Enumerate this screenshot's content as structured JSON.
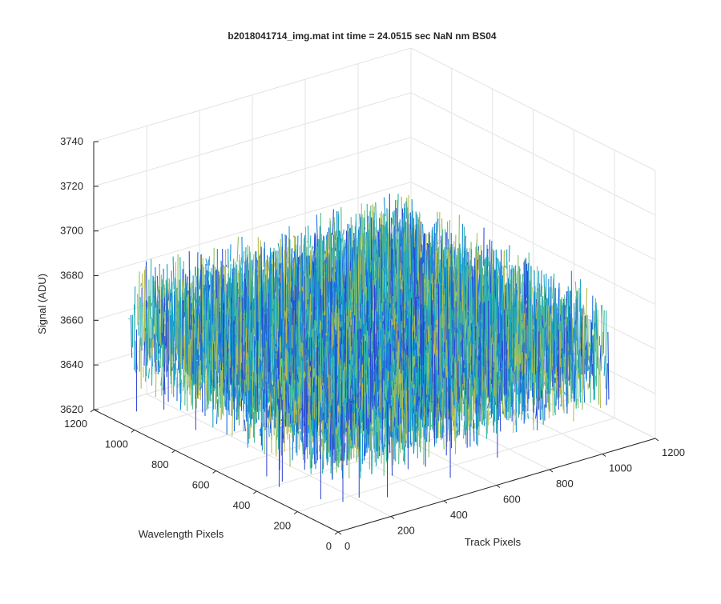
{
  "chart_data": {
    "type": "surface",
    "title": "b2018041714_img.mat int time = 24.0515 sec   NaN nm BS04",
    "xlabel": "Track Pixels",
    "ylabel": "Wavelength Pixels",
    "zlabel": "Signal (ADU)",
    "xlim": [
      0,
      1200
    ],
    "ylim": [
      0,
      1200
    ],
    "zlim": [
      3620,
      3740
    ],
    "x_ticks": [
      "0",
      "200",
      "400",
      "600",
      "800",
      "1000",
      "1200"
    ],
    "y_ticks": [
      "0",
      "200",
      "400",
      "600",
      "800",
      "1000",
      "1200"
    ],
    "z_ticks": [
      "3620",
      "3640",
      "3660",
      "3680",
      "3700",
      "3720",
      "3740"
    ],
    "grid": true,
    "colormap": "parula",
    "surface": {
      "x_range": [
        0,
        1024
      ],
      "y_range": [
        0,
        1024
      ],
      "mean": 3665,
      "noise_range": [
        3635,
        3705
      ]
    }
  }
}
